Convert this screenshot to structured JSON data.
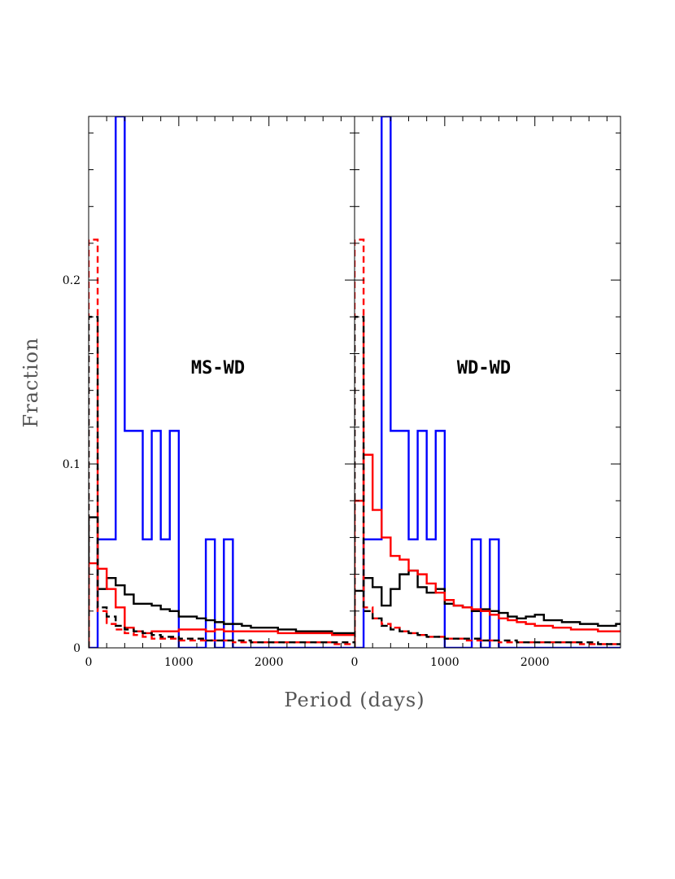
{
  "chart_data": {
    "type": "line",
    "xlabel": "Period (days)",
    "ylabel": "Fraction",
    "xlim": [
      0,
      2950
    ],
    "ylim": [
      0,
      0.289
    ],
    "bin_width": 100,
    "x_ticks": [
      0,
      1000,
      2000
    ],
    "y_ticks": [
      0,
      0.1,
      0.2
    ],
    "y_tick_labels": [
      "0",
      "0.1",
      "0.2"
    ],
    "colors": {
      "black": "#000000",
      "red": "#ff0000",
      "blue": "#0000ff",
      "frame": "#000000"
    },
    "panels": [
      {
        "title": "MS-WD",
        "series": [
          {
            "color": "#0000ff",
            "style": "solid",
            "values": [
              0,
              0.059,
              0.059,
              0.29,
              0.118,
              0.118,
              0.059,
              0.118,
              0.059,
              0.118,
              0,
              0,
              0,
              0.059,
              0,
              0.059,
              0,
              0,
              0,
              0,
              0,
              0,
              0,
              0,
              0,
              0,
              0,
              0,
              0,
              0
            ]
          },
          {
            "color": "#000000",
            "style": "solid",
            "values": [
              0.071,
              0.032,
              0.038,
              0.034,
              0.029,
              0.024,
              0.024,
              0.023,
              0.021,
              0.02,
              0.017,
              0.017,
              0.016,
              0.015,
              0.014,
              0.013,
              0.013,
              0.012,
              0.011,
              0.011,
              0.011,
              0.01,
              0.01,
              0.009,
              0.009,
              0.009,
              0.009,
              0.008,
              0.008,
              0.008
            ]
          },
          {
            "color": "#ff0000",
            "style": "solid",
            "values": [
              0.046,
              0.043,
              0.032,
              0.022,
              0.011,
              0.009,
              0.008,
              0.009,
              0.009,
              0.009,
              0.01,
              0.01,
              0.01,
              0.009,
              0.01,
              0.009,
              0.009,
              0.009,
              0.009,
              0.009,
              0.009,
              0.008,
              0.008,
              0.008,
              0.008,
              0.008,
              0.008,
              0.007,
              0.007,
              0.007
            ]
          },
          {
            "color": "#ff0000",
            "style": "dashed",
            "values": [
              0.222,
              0.02,
              0.013,
              0.01,
              0.008,
              0.007,
              0.006,
              0.005,
              0.005,
              0.005,
              0.004,
              0.004,
              0.004,
              0.004,
              0.004,
              0.004,
              0.003,
              0.003,
              0.003,
              0.003,
              0.003,
              0.003,
              0.003,
              0.003,
              0.003,
              0.003,
              0.003,
              0.002,
              0.002,
              0.002
            ]
          },
          {
            "color": "#000000",
            "style": "dashed",
            "values": [
              0.18,
              0.022,
              0.017,
              0.012,
              0.01,
              0.009,
              0.008,
              0.007,
              0.006,
              0.006,
              0.005,
              0.005,
              0.005,
              0.004,
              0.004,
              0.004,
              0.004,
              0.004,
              0.003,
              0.003,
              0.003,
              0.003,
              0.003,
              0.003,
              0.003,
              0.003,
              0.003,
              0.003,
              0.003,
              0.003
            ]
          }
        ]
      },
      {
        "title": "WD-WD",
        "series": [
          {
            "color": "#0000ff",
            "style": "solid",
            "values": [
              0,
              0.059,
              0.059,
              0.29,
              0.118,
              0.118,
              0.059,
              0.118,
              0.059,
              0.118,
              0,
              0,
              0,
              0.059,
              0,
              0.059,
              0,
              0,
              0,
              0,
              0,
              0,
              0,
              0,
              0,
              0,
              0,
              0,
              0,
              0
            ]
          },
          {
            "color": "#000000",
            "style": "solid",
            "values": [
              0.031,
              0.038,
              0.033,
              0.023,
              0.032,
              0.04,
              0.042,
              0.033,
              0.03,
              0.032,
              0.024,
              0.023,
              0.022,
              0.02,
              0.021,
              0.02,
              0.019,
              0.017,
              0.016,
              0.017,
              0.018,
              0.015,
              0.015,
              0.014,
              0.014,
              0.013,
              0.013,
              0.012,
              0.012,
              0.013
            ]
          },
          {
            "color": "#ff0000",
            "style": "solid",
            "values": [
              0.08,
              0.105,
              0.075,
              0.06,
              0.05,
              0.048,
              0.042,
              0.04,
              0.035,
              0.03,
              0.026,
              0.023,
              0.022,
              0.021,
              0.02,
              0.018,
              0.016,
              0.015,
              0.014,
              0.013,
              0.012,
              0.012,
              0.011,
              0.011,
              0.01,
              0.01,
              0.01,
              0.009,
              0.009,
              0.009
            ]
          },
          {
            "color": "#ff0000",
            "style": "dashed",
            "values": [
              0.222,
              0.022,
              0.016,
              0.013,
              0.011,
              0.009,
              0.008,
              0.007,
              0.006,
              0.006,
              0.005,
              0.005,
              0.004,
              0.004,
              0.004,
              0.004,
              0.003,
              0.003,
              0.003,
              0.003,
              0.003,
              0.003,
              0.003,
              0.003,
              0.003,
              0.002,
              0.002,
              0.002,
              0.002,
              0.002
            ]
          },
          {
            "color": "#000000",
            "style": "dashed",
            "values": [
              0.18,
              0.02,
              0.016,
              0.012,
              0.01,
              0.009,
              0.008,
              0.007,
              0.006,
              0.006,
              0.005,
              0.005,
              0.005,
              0.005,
              0.004,
              0.004,
              0.004,
              0.004,
              0.003,
              0.003,
              0.003,
              0.003,
              0.003,
              0.003,
              0.003,
              0.003,
              0.003,
              0.002,
              0.002,
              0.002
            ]
          }
        ]
      }
    ]
  }
}
